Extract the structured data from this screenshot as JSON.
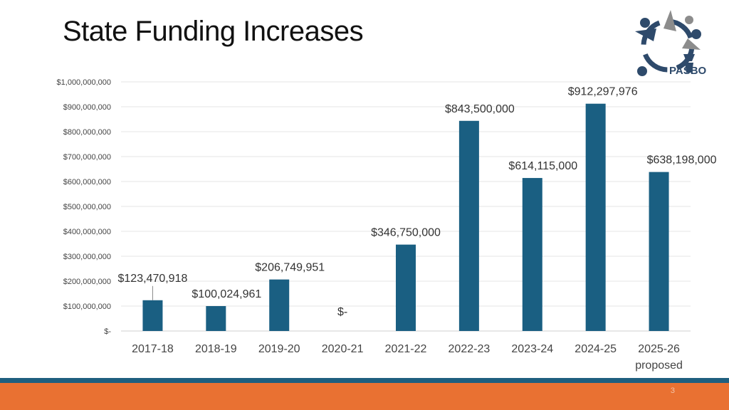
{
  "slide": {
    "title": "State Funding Increases",
    "page_number": "3",
    "logo_text": "PASBO"
  },
  "colors": {
    "bar": "#1a5f82",
    "footer_line": "#1f5f7f",
    "footer_band": "#e97132",
    "logo_dark": "#2e4a6b",
    "logo_gray": "#8c8c8c"
  },
  "chart_data": {
    "type": "bar",
    "title": "",
    "xlabel": "",
    "ylabel": "",
    "categories": [
      "2017-18",
      "2018-19",
      "2019-20",
      "2020-21",
      "2021-22",
      "2022-23",
      "2023-24",
      "2024-25",
      "2025-26"
    ],
    "category_sublabels": [
      "",
      "",
      "",
      "",
      "",
      "",
      "",
      "",
      "proposed"
    ],
    "values": [
      123470918,
      100024961,
      206749951,
      0,
      346750000,
      843500000,
      614115000,
      912297976,
      638198000
    ],
    "data_labels": [
      "$123,470,918",
      "$100,024,961",
      "$206,749,951",
      "$-",
      "$346,750,000",
      "$843,500,000",
      "$614,115,000",
      "$912,297,976",
      "$638,198,000"
    ],
    "ylim": [
      0,
      1000000000
    ],
    "y_ticks": [
      0,
      100000000,
      200000000,
      300000000,
      400000000,
      500000000,
      600000000,
      700000000,
      800000000,
      900000000,
      1000000000
    ],
    "y_tick_labels": [
      "$-",
      "$100,000,000",
      "$200,000,000",
      "$300,000,000",
      "$400,000,000",
      "$500,000,000",
      "$600,000,000",
      "$700,000,000",
      "$800,000,000",
      "$900,000,000",
      "$1,000,000,000"
    ],
    "grid": true,
    "legend": "none"
  }
}
